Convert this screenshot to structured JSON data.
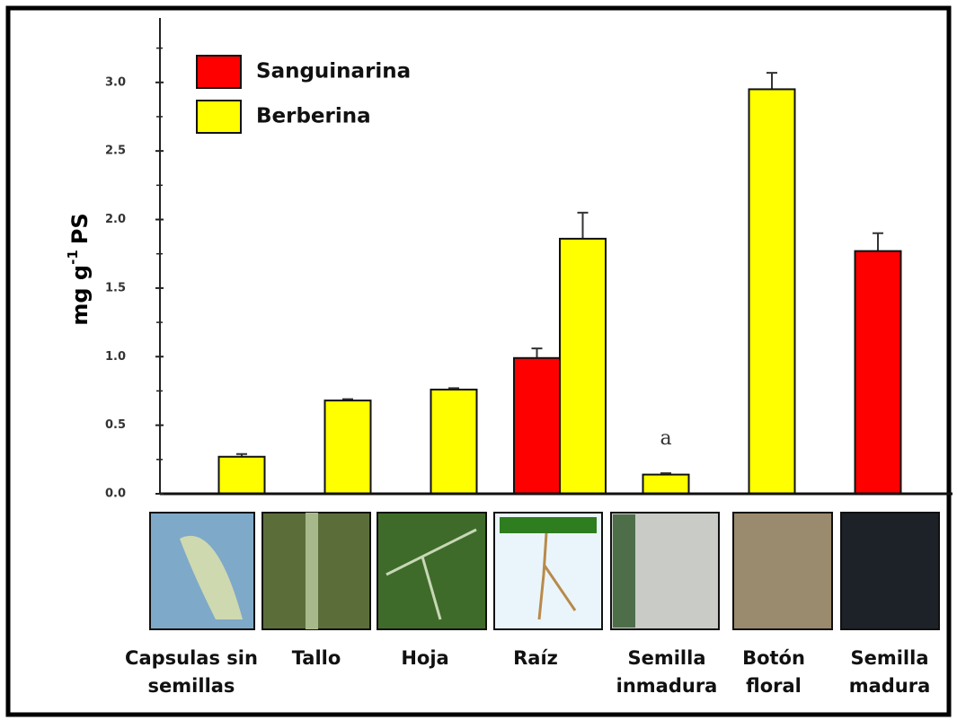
{
  "chart_data": {
    "type": "bar",
    "y_label": {
      "text": "mg g",
      "superscript": "-1",
      "suffix": "PS"
    },
    "categories": [
      "Capsulas sin semillas",
      "Tallo",
      "Hoja",
      "Raíz",
      "Semilla inmadura",
      "Botón floral",
      "Semilla madura"
    ],
    "series": [
      {
        "name": "Sanguinarina",
        "color": "#ff0000",
        "values": [
          null,
          null,
          null,
          0.99,
          null,
          null,
          1.77
        ],
        "errors": [
          null,
          null,
          null,
          0.07,
          null,
          null,
          0.13
        ]
      },
      {
        "name": "Berberina",
        "color": "#ffff00",
        "values": [
          0.27,
          0.68,
          0.76,
          1.86,
          0.14,
          2.95,
          null
        ],
        "errors": [
          0.02,
          0.01,
          0.01,
          0.19,
          0.01,
          0.12,
          null
        ]
      }
    ],
    "annotations": [
      {
        "text": "a",
        "category": 4
      }
    ],
    "ylim": [
      0,
      3.47
    ],
    "yticks": [
      {
        "value": 0,
        "label": "0.0"
      },
      {
        "value": 0.5,
        "label": "0.5"
      },
      {
        "value": 1,
        "label": "1.0"
      },
      {
        "value": 1.5,
        "label": "1.5"
      },
      {
        "value": 2,
        "label": "2.0"
      },
      {
        "value": 2.5,
        "label": "2.5"
      },
      {
        "value": 3,
        "label": "3.0"
      }
    ],
    "yminorticks": [
      0.25,
      0.75,
      1.25,
      1.75,
      2.25,
      2.75,
      3.25
    ],
    "legend": "top-left"
  }
}
